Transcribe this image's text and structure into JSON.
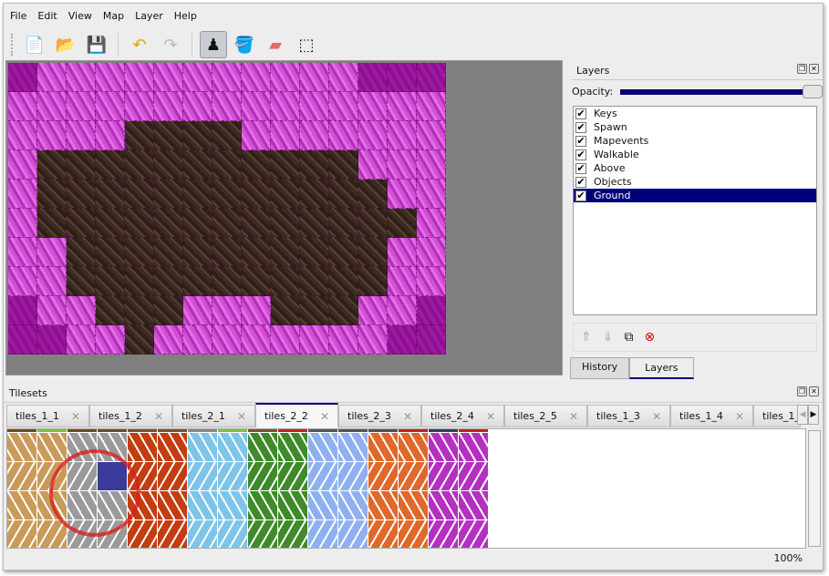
{
  "menu": [
    "File",
    "Edit",
    "View",
    "Map",
    "Layer",
    "Help"
  ],
  "toolbar": [
    {
      "name": "new-icon",
      "glyph": "📄"
    },
    {
      "name": "open-icon",
      "glyph": "📂"
    },
    {
      "name": "save-icon",
      "glyph": "💾"
    },
    {
      "name": "undo-icon",
      "glyph": "↶"
    },
    {
      "name": "redo-icon",
      "glyph": "↷"
    },
    {
      "name": "stamp-brush-icon",
      "glyph": "♟",
      "active": true
    },
    {
      "name": "bucket-fill-icon",
      "glyph": "🪣"
    },
    {
      "name": "eraser-icon",
      "glyph": "▰"
    },
    {
      "name": "rect-select-icon",
      "glyph": "⬚"
    }
  ],
  "layers_panel": {
    "title": "Layers",
    "opacity_label": "Opacity:",
    "opacity": 1.0,
    "layers": [
      {
        "name": "Keys",
        "visible": true
      },
      {
        "name": "Spawn",
        "visible": true
      },
      {
        "name": "Mapevents",
        "visible": true
      },
      {
        "name": "Walkable",
        "visible": true
      },
      {
        "name": "Above",
        "visible": true
      },
      {
        "name": "Objects",
        "visible": true
      },
      {
        "name": "Ground",
        "visible": true,
        "selected": true
      }
    ],
    "tabs": [
      "History",
      "Layers"
    ],
    "active_tab": "Layers"
  },
  "tilesets_panel": {
    "title": "Tilesets",
    "tabs": [
      "tiles_1_1",
      "tiles_1_2",
      "tiles_2_1",
      "tiles_2_2",
      "tiles_2_3",
      "tiles_2_4",
      "tiles_2_5",
      "tiles_1_3",
      "tiles_1_4",
      "tiles_1_"
    ],
    "active_tab": "tiles_2_2"
  },
  "status": {
    "zoom": "100%"
  },
  "colors": {
    "selection": "#00007a",
    "wall": "#d24fd6",
    "floor": "#3d2a22"
  }
}
